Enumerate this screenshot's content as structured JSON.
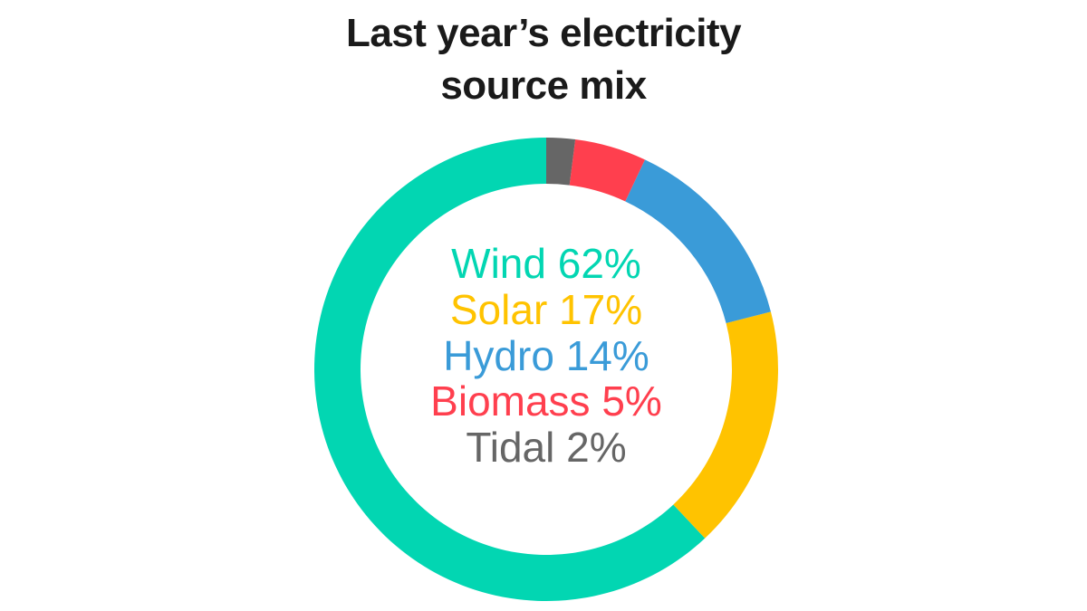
{
  "chart_data": {
    "type": "donut",
    "title": "Last year’s electricity source mix",
    "categories": [
      "Wind",
      "Solar",
      "Hydro",
      "Biomass",
      "Tidal"
    ],
    "values": [
      62,
      17,
      14,
      5,
      2
    ],
    "value_labels": [
      "62%",
      "17%",
      "14%",
      "5%",
      "2%"
    ],
    "colors": [
      "#02d6b2",
      "#ffc300",
      "#3a9bd8",
      "#ff3f4e",
      "#666666"
    ],
    "direction": "counterclockwise"
  }
}
